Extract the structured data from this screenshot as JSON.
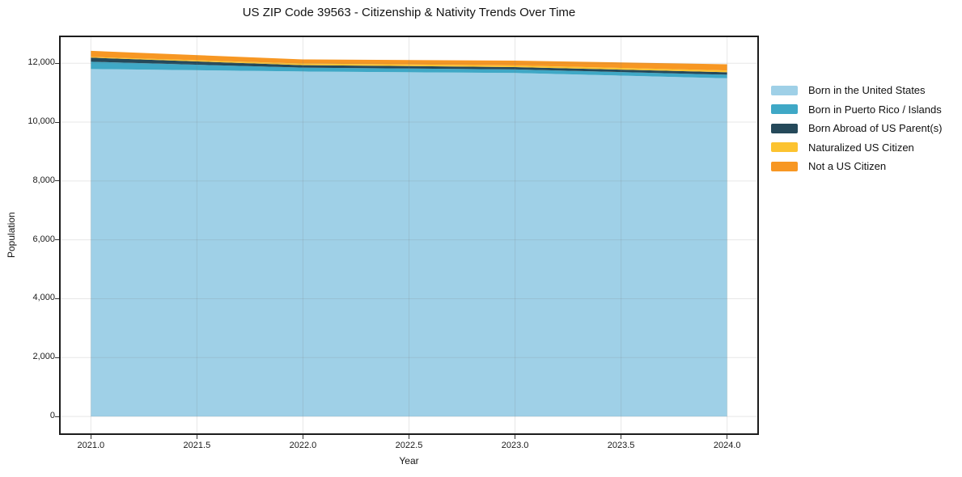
{
  "title": "US ZIP Code 39563 - Citizenship & Nativity Trends Over Time",
  "colors": {
    "background": "#ffffff",
    "frame": "#1c1c1c",
    "grid": "#787878",
    "grid_opacity": 0.18,
    "tick": "#333333",
    "text": "#141414"
  },
  "chart_data": {
    "type": "area",
    "stacked": true,
    "title": "US ZIP Code 39563 - Citizenship & Nativity Trends Over Time",
    "xlabel": "Year",
    "ylabel": "Population",
    "x": [
      2021,
      2022,
      2023,
      2024
    ],
    "series": [
      {
        "name": "Born in the United States",
        "color": "#9fd0e7",
        "values": [
          11805,
          11720,
          11670,
          11490
        ]
      },
      {
        "name": "Born in Puerto Rico / Islands",
        "color": "#3fa8c6",
        "values": [
          245,
          130,
          120,
          120
        ]
      },
      {
        "name": "Born Abroad of US Parent(s)",
        "color": "#25495a",
        "values": [
          140,
          85,
          80,
          85
        ]
      },
      {
        "name": "Naturalized US Citizen",
        "color": "#fcc330",
        "values": [
          25,
          55,
          55,
          60
        ]
      },
      {
        "name": "Not a US Citizen",
        "color": "#f79723",
        "values": [
          205,
          140,
          165,
          210
        ]
      }
    ],
    "xlim": [
      2020.85,
      2024.15
    ],
    "ylim": [
      -630,
      12940
    ],
    "x_ticks": [
      2021.0,
      2021.5,
      2022.0,
      2022.5,
      2023.0,
      2023.5,
      2024.0
    ],
    "x_tick_labels": [
      "2021.0",
      "2021.5",
      "2022.0",
      "2022.5",
      "2023.0",
      "2023.5",
      "2024.0"
    ],
    "y_ticks": [
      0,
      2000,
      4000,
      6000,
      8000,
      10000,
      12000
    ],
    "y_tick_labels": [
      "0",
      "2,000",
      "4,000",
      "6,000",
      "8,000",
      "10,000",
      "12,000"
    ],
    "grid": true,
    "legend_position": "right-outside"
  }
}
